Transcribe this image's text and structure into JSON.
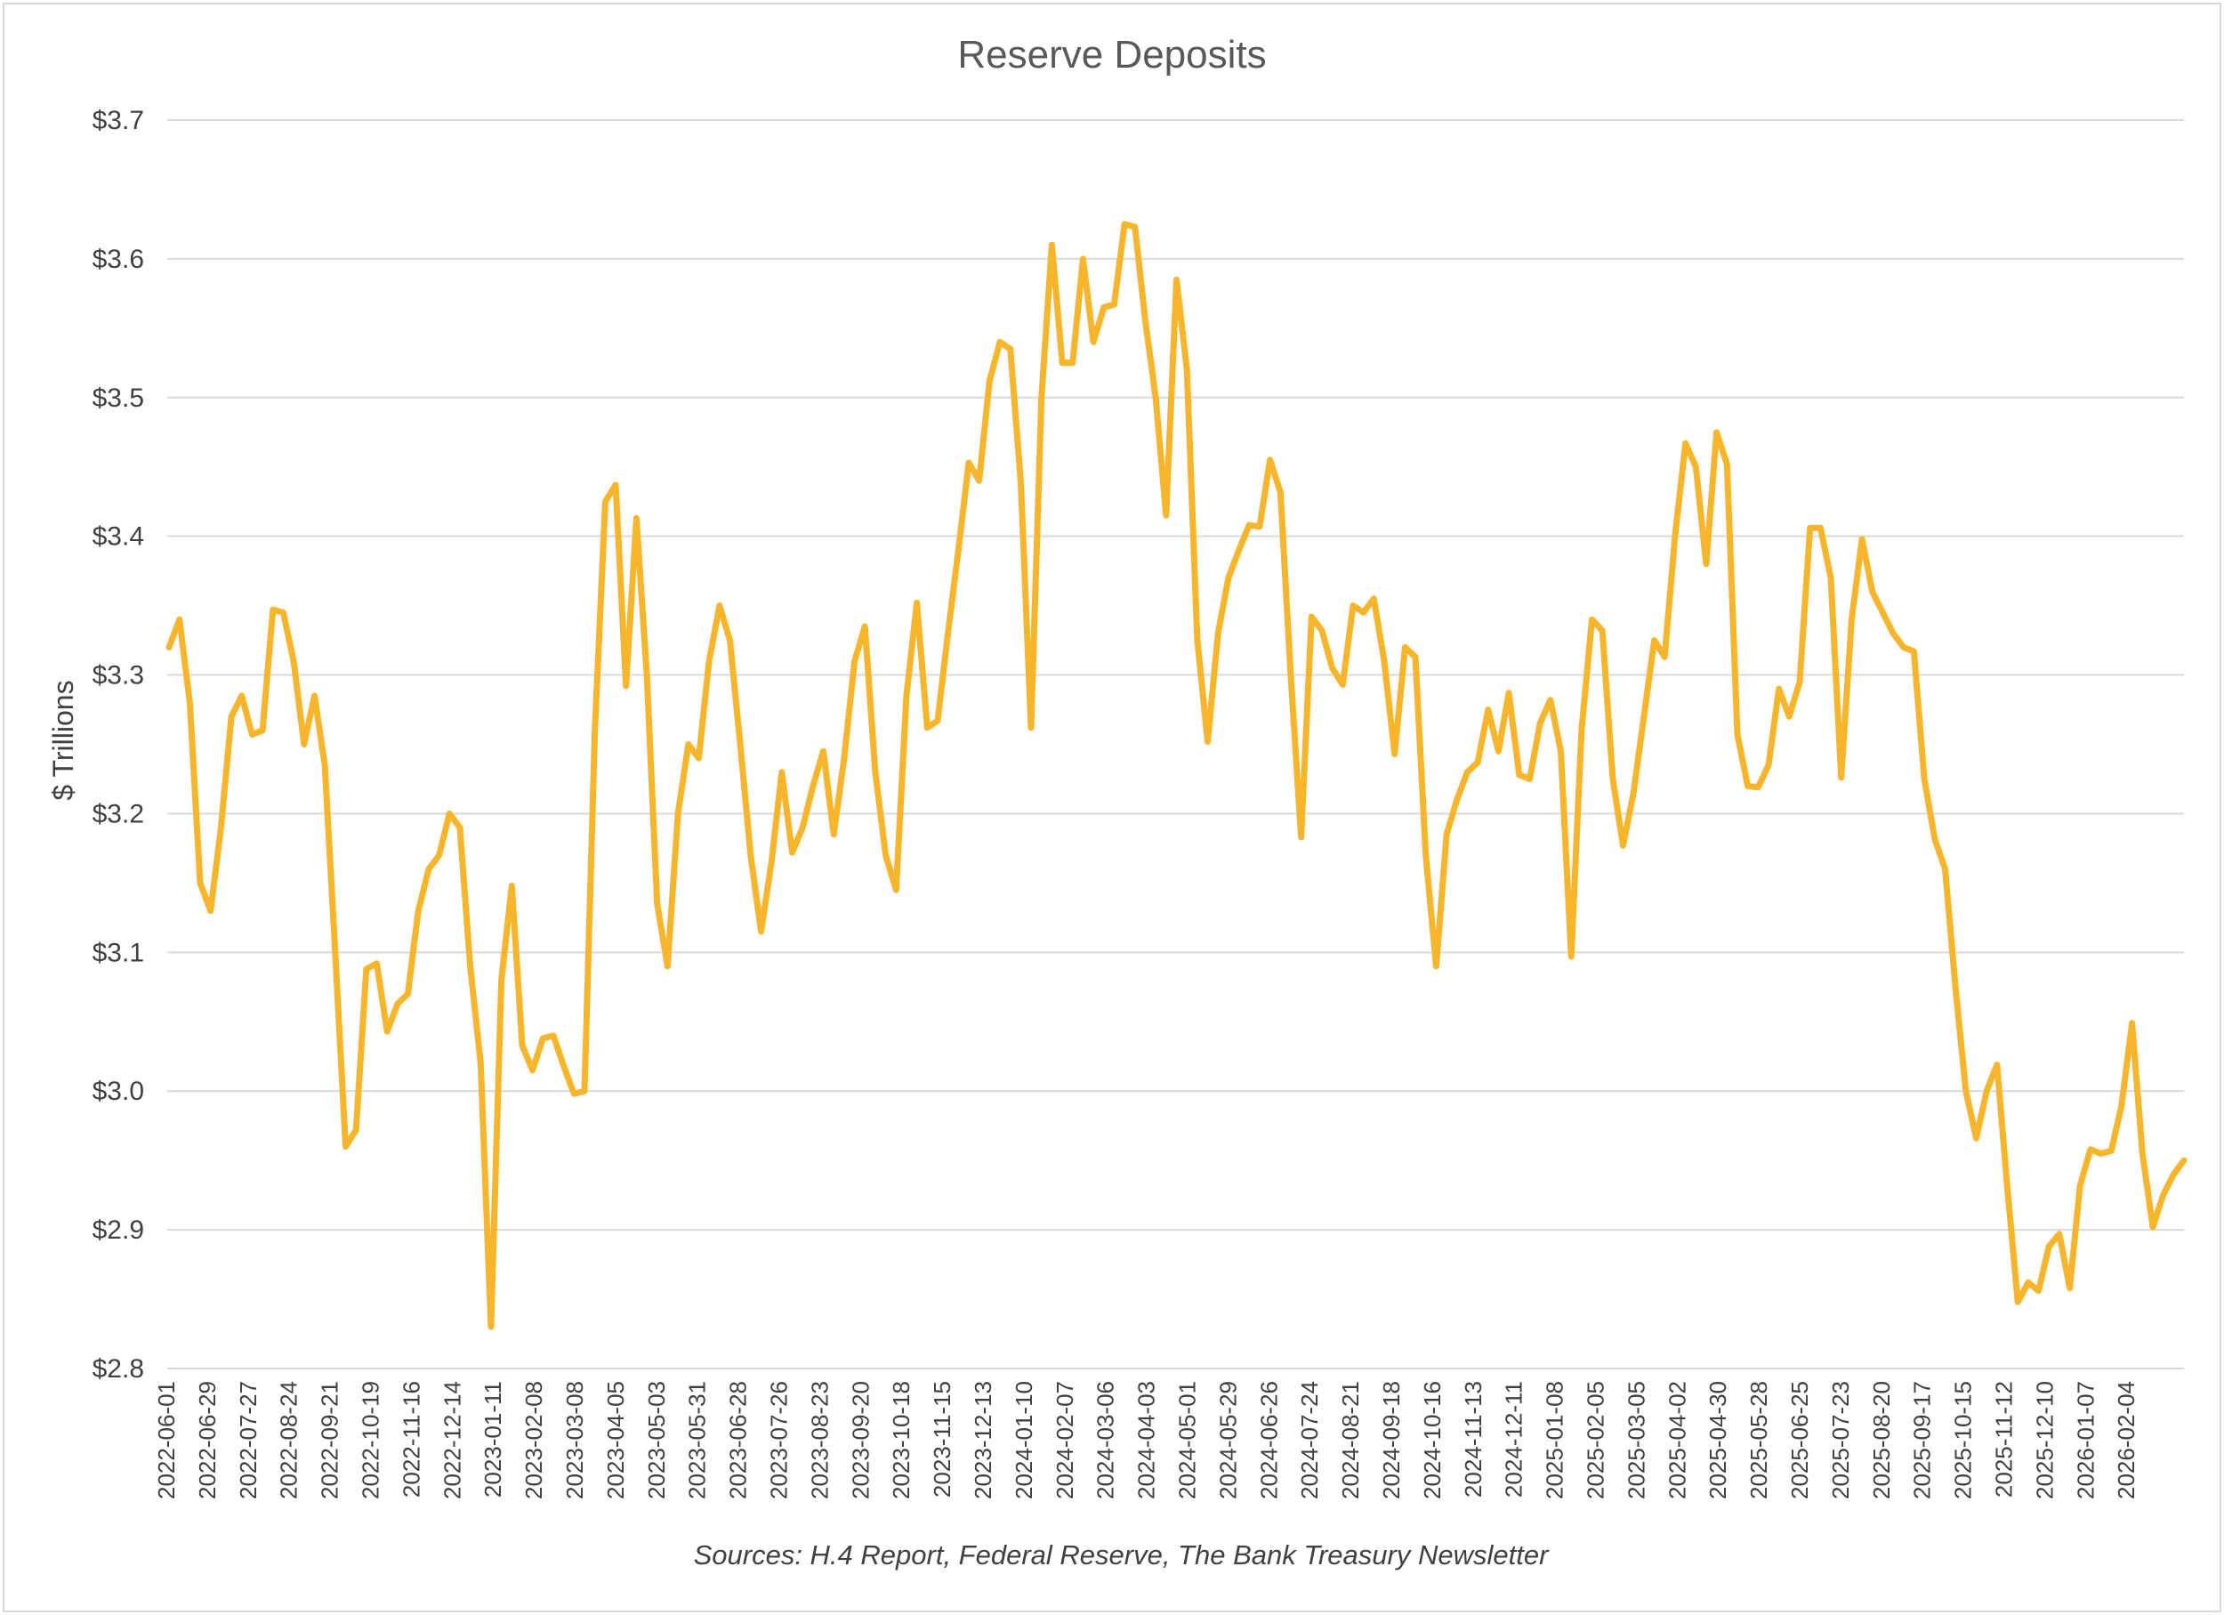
{
  "chart_data": {
    "type": "line",
    "title": "Reserve Deposits",
    "ylabel": "$ Trillions",
    "xlabel": "",
    "source": "Sources: H.4 Report, Federal Reserve, The Bank Treasury Newsletter",
    "ylim": [
      2.8,
      3.7
    ],
    "yticks": [
      2.8,
      2.9,
      3.0,
      3.1,
      3.2,
      3.3,
      3.4,
      3.5,
      3.6,
      3.7
    ],
    "ytick_labels": [
      "$2.8",
      "$2.9",
      "$3.0",
      "$3.1",
      "$3.2",
      "$3.3",
      "$3.4",
      "$3.5",
      "$3.6",
      "$3.7"
    ],
    "xtick_labels": [
      "2022-06-01",
      "2022-06-29",
      "2022-07-27",
      "2022-08-24",
      "2022-09-21",
      "2022-10-19",
      "2022-11-16",
      "2022-12-14",
      "2023-01-11",
      "2023-02-08",
      "2023-03-08",
      "2023-04-05",
      "2023-05-03",
      "2023-05-31",
      "2023-06-28",
      "2023-07-26",
      "2023-08-23",
      "2023-09-20",
      "2023-10-18",
      "2023-11-15",
      "2023-12-13",
      "2024-01-10",
      "2024-02-07",
      "2024-03-06",
      "2024-04-03",
      "2024-05-01",
      "2024-05-29",
      "2024-06-26",
      "2024-07-24",
      "2024-08-21",
      "2024-09-18",
      "2024-10-16",
      "2024-11-13",
      "2024-12-11",
      "2025-01-08",
      "2025-02-05",
      "2025-03-05",
      "2025-04-02",
      "2025-04-30",
      "2025-05-28",
      "2025-06-25",
      "2025-07-23",
      "2025-08-20",
      "2025-09-17",
      "2025-10-15",
      "2025-11-12",
      "2025-12-10",
      "2026-01-07",
      "2026-02-04"
    ],
    "grid": true,
    "legend": "none",
    "series": [
      {
        "name": "",
        "color": "#f7b52c",
        "values": [
          3.32,
          3.34,
          3.28,
          3.15,
          3.13,
          3.19,
          3.27,
          3.285,
          3.257,
          3.26,
          3.347,
          3.345,
          3.31,
          3.25,
          3.285,
          3.235,
          3.1,
          2.96,
          2.972,
          3.088,
          3.092,
          3.043,
          3.063,
          3.07,
          3.13,
          3.16,
          3.17,
          3.2,
          3.19,
          3.09,
          3.02,
          2.83,
          3.08,
          3.148,
          3.033,
          3.015,
          3.038,
          3.04,
          3.018,
          2.998,
          3.0,
          3.26,
          3.425,
          3.437,
          3.292,
          3.413,
          3.3,
          3.135,
          3.09,
          3.2,
          3.25,
          3.24,
          3.31,
          3.35,
          3.325,
          3.25,
          3.17,
          3.115,
          3.165,
          3.23,
          3.172,
          3.19,
          3.22,
          3.245,
          3.185,
          3.24,
          3.31,
          3.335,
          3.23,
          3.17,
          3.145,
          3.285,
          3.352,
          3.262,
          3.267,
          3.33,
          3.39,
          3.453,
          3.44,
          3.512,
          3.54,
          3.535,
          3.44,
          3.262,
          3.5,
          3.61,
          3.525,
          3.525,
          3.6,
          3.54,
          3.565,
          3.567,
          3.625,
          3.623,
          3.555,
          3.5,
          3.415,
          3.585,
          3.52,
          3.325,
          3.252,
          3.33,
          3.37,
          3.39,
          3.408,
          3.407,
          3.455,
          3.432,
          3.3,
          3.183,
          3.342,
          3.332,
          3.305,
          3.293,
          3.35,
          3.345,
          3.355,
          3.31,
          3.243,
          3.32,
          3.313,
          3.17,
          3.09,
          3.185,
          3.21,
          3.23,
          3.237,
          3.275,
          3.245,
          3.287,
          3.228,
          3.225,
          3.265,
          3.282,
          3.245,
          3.097,
          3.26,
          3.34,
          3.332,
          3.225,
          3.177,
          3.215,
          3.27,
          3.325,
          3.313,
          3.4,
          3.467,
          3.45,
          3.38,
          3.475,
          3.452,
          3.257,
          3.22,
          3.219,
          3.235,
          3.29,
          3.27,
          3.295,
          3.406,
          3.406,
          3.37,
          3.226,
          3.34,
          3.398,
          3.36,
          3.345,
          3.33,
          3.32,
          3.317,
          3.225,
          3.182,
          3.16,
          3.075,
          3.0,
          2.966,
          3.0,
          3.019,
          2.93,
          2.848,
          2.862,
          2.856,
          2.888,
          2.897,
          2.858,
          2.932,
          2.958,
          2.955,
          2.957,
          2.99,
          3.049,
          2.955,
          2.902,
          2.925,
          2.94,
          2.95
        ]
      }
    ]
  }
}
